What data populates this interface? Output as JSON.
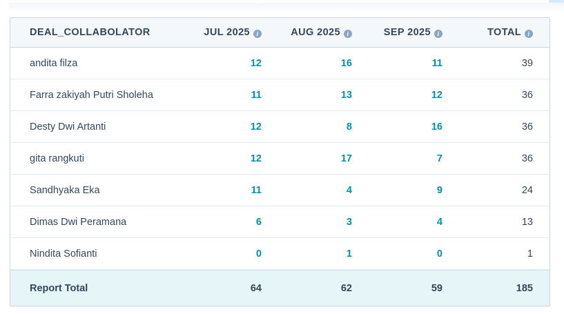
{
  "icons": {
    "info_glyph": "i"
  },
  "colors": {
    "link_teal": "#0091ae",
    "text_navy": "#33475b",
    "header_bg": "#f5f8fa",
    "footer_bg": "#e5f5f8",
    "outer_border": "#cbd6e2",
    "row_border": "#e3eaf1",
    "info_icon_bg": "#8aa6c2"
  },
  "table": {
    "columns": [
      {
        "label": "DEAL_COLLABOLATOR"
      },
      {
        "label": "JUL 2025"
      },
      {
        "label": "AUG 2025"
      },
      {
        "label": "SEP 2025"
      },
      {
        "label": "TOTAL"
      }
    ],
    "rows": [
      {
        "name": "andita filza",
        "jul": 12,
        "aug": 16,
        "sep": 11,
        "total": 39
      },
      {
        "name": "Farra zakiyah Putri Sholeha",
        "jul": 11,
        "aug": 13,
        "sep": 12,
        "total": 36
      },
      {
        "name": "Desty Dwi Artanti",
        "jul": 12,
        "aug": 8,
        "sep": 16,
        "total": 36
      },
      {
        "name": "gita rangkuti",
        "jul": 12,
        "aug": 17,
        "sep": 7,
        "total": 36
      },
      {
        "name": "Sandhyaka Eka",
        "jul": 11,
        "aug": 4,
        "sep": 9,
        "total": 24
      },
      {
        "name": "Dimas Dwi Peramana",
        "jul": 6,
        "aug": 3,
        "sep": 4,
        "total": 13
      },
      {
        "name": "Nindita Sofianti",
        "jul": 0,
        "aug": 1,
        "sep": 0,
        "total": 1
      }
    ],
    "footer": {
      "label": "Report Total",
      "jul": 64,
      "aug": 62,
      "sep": 59,
      "total": 185
    }
  }
}
